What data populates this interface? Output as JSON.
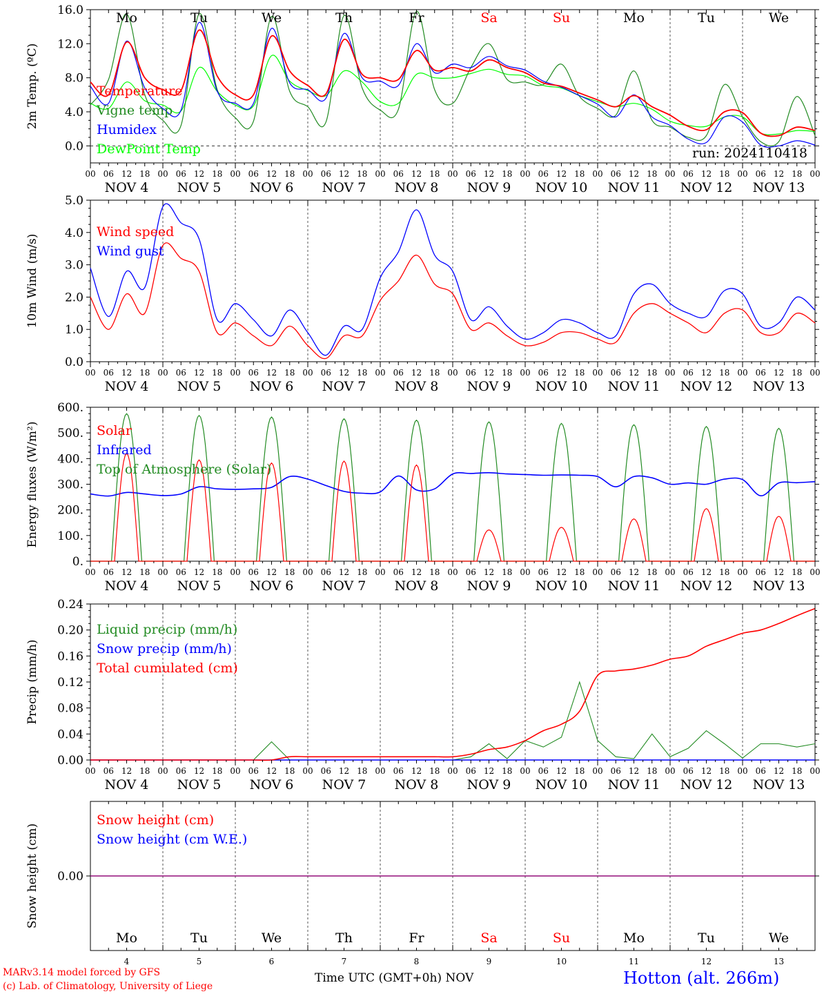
{
  "colors": {
    "red": "#ff0000",
    "dark_green": "#228b22",
    "blue": "#0000ff",
    "light_green": "#00ff00",
    "purple": "#800080",
    "grid": "#555555"
  },
  "x_ticks": [
    "00",
    "06",
    "12",
    "18",
    "00",
    "06",
    "12",
    "18",
    "00",
    "06",
    "12",
    "18",
    "00",
    "06",
    "12",
    "18",
    "00",
    "06",
    "12",
    "18",
    "00",
    "06",
    "12",
    "18",
    "00",
    "06",
    "12",
    "18",
    "00",
    "06",
    "12",
    "18",
    "00",
    "06",
    "12",
    "18",
    "00",
    "06",
    "12",
    "18",
    "00"
  ],
  "date_labels": [
    "NOV  4",
    "NOV  5",
    "NOV  6",
    "NOV  7",
    "NOV  8",
    "NOV  9",
    "NOV 10",
    "NOV 11",
    "NOV 12",
    "NOV 13"
  ],
  "weekdays": [
    "Mo",
    "Tu",
    "We",
    "Th",
    "Fr",
    "Sa",
    "Su",
    "Mo",
    "Tu",
    "We"
  ],
  "weekend_days": [
    "Sa",
    "Su"
  ],
  "day_numbers": [
    "4",
    "5",
    "6",
    "7",
    "8",
    "9",
    "10",
    "11",
    "12",
    "13"
  ],
  "run_label": "run: 2024110418",
  "footer": {
    "credit_line1": "MARv3.14 model forced by GFS",
    "credit_line2": "(c) Lab. of Climatology, University of Liege",
    "xlabel": "Time UTC (GMT+0h) NOV",
    "station": "Hotton (alt. 266m)"
  },
  "chart_data": [
    {
      "type": "line",
      "ylabel": "2m Temp. (ºC)",
      "ylim": [
        -2,
        16
      ],
      "yticks": [
        "16.0",
        "12.0",
        "8.0",
        "4.0",
        "0.0"
      ],
      "ytick_values": [
        16,
        12,
        8,
        4,
        0
      ],
      "dashed_zero": true,
      "x_hours": [
        0,
        6,
        12,
        18,
        24,
        30,
        36,
        42,
        48,
        54,
        60,
        66,
        72,
        78,
        84,
        90,
        96,
        102,
        108,
        114,
        120,
        126,
        132,
        138,
        144,
        150,
        156,
        162,
        168,
        174,
        180,
        186,
        192,
        198,
        204,
        210,
        216,
        222,
        228,
        234,
        240
      ],
      "series": [
        {
          "name": "Temperature",
          "color": "#ff0000",
          "values": [
            7.5,
            6.0,
            12.2,
            8.0,
            6.6,
            6.5,
            13.6,
            8.2,
            6.0,
            6.0,
            12.9,
            8.8,
            7.1,
            6.1,
            12.5,
            8.4,
            8.0,
            7.8,
            11.2,
            8.9,
            9.2,
            8.8,
            10.1,
            9.2,
            8.6,
            7.4,
            7.0,
            6.2,
            5.4,
            4.6,
            5.9,
            4.6,
            3.6,
            2.3,
            1.9,
            4.0,
            3.9,
            1.5,
            1.2,
            2.2,
            1.8
          ]
        },
        {
          "name": "Vigne temp",
          "color": "#228b22",
          "values": [
            4.8,
            7.8,
            15.5,
            6.0,
            3.0,
            2.4,
            15.5,
            6.6,
            3.3,
            2.9,
            15.2,
            6.4,
            4.6,
            2.8,
            15.3,
            6.8,
            4.2,
            4.3,
            15.8,
            6.6,
            5.0,
            9.2,
            12.0,
            7.8,
            7.5,
            7.2,
            9.6,
            5.8,
            4.4,
            3.6,
            8.8,
            3.0,
            2.2,
            1.0,
            1.2,
            7.2,
            3.4,
            0.5,
            0.5,
            5.8,
            1.2
          ]
        },
        {
          "name": "Humidex",
          "color": "#0000ff",
          "values": [
            7.0,
            5.0,
            12.3,
            6.8,
            4.4,
            4.2,
            14.5,
            6.4,
            5.0,
            5.0,
            13.8,
            7.4,
            6.6,
            5.6,
            13.2,
            8.0,
            7.6,
            7.1,
            12.0,
            8.6,
            9.6,
            9.2,
            10.5,
            9.4,
            8.9,
            7.6,
            6.9,
            5.9,
            4.9,
            3.4,
            6.0,
            3.4,
            2.4,
            0.8,
            0.4,
            3.4,
            2.8,
            0.1,
            0.0,
            0.6,
            0.1
          ]
        },
        {
          "name": "DewPoint Temp",
          "color": "#00ff00",
          "values": [
            5.0,
            4.4,
            7.5,
            5.3,
            4.8,
            4.1,
            9.2,
            6.4,
            4.8,
            4.7,
            10.6,
            7.6,
            6.5,
            5.9,
            8.8,
            7.5,
            5.2,
            5.0,
            8.4,
            8.0,
            8.0,
            8.5,
            9.0,
            8.4,
            8.2,
            7.1,
            6.8,
            5.9,
            5.2,
            4.6,
            5.0,
            4.3,
            2.9,
            2.4,
            2.3,
            3.4,
            3.4,
            1.5,
            1.4,
            1.8,
            1.7
          ]
        }
      ]
    },
    {
      "type": "line",
      "ylabel": "10m Wind (m/s)",
      "ylim": [
        0,
        5
      ],
      "yticks": [
        "5.0",
        "4.0",
        "3.0",
        "2.0",
        "1.0",
        "0.0"
      ],
      "ytick_values": [
        5,
        4,
        3,
        2,
        1,
        0
      ],
      "x_hours": [
        0,
        6,
        12,
        18,
        24,
        30,
        36,
        42,
        48,
        54,
        60,
        66,
        72,
        78,
        84,
        90,
        96,
        102,
        108,
        114,
        120,
        126,
        132,
        138,
        144,
        150,
        156,
        162,
        168,
        174,
        180,
        186,
        192,
        198,
        204,
        210,
        216,
        222,
        228,
        234,
        240
      ],
      "series": [
        {
          "name": "Wind speed",
          "color": "#ff0000",
          "values": [
            2.0,
            1.0,
            2.1,
            1.5,
            3.6,
            3.2,
            2.8,
            0.9,
            1.2,
            0.8,
            0.5,
            1.1,
            0.5,
            0.1,
            0.8,
            0.8,
            1.9,
            2.5,
            3.3,
            2.4,
            2.1,
            1.0,
            1.2,
            0.8,
            0.5,
            0.6,
            0.9,
            0.9,
            0.7,
            0.6,
            1.5,
            1.8,
            1.5,
            1.2,
            0.9,
            1.5,
            1.6,
            0.9,
            0.9,
            1.5,
            1.2
          ]
        },
        {
          "name": "Wind gust",
          "color": "#0000ff",
          "values": [
            2.9,
            1.4,
            2.8,
            2.3,
            4.8,
            4.3,
            3.8,
            1.3,
            1.8,
            1.3,
            0.8,
            1.6,
            0.9,
            0.2,
            1.1,
            1.0,
            2.6,
            3.4,
            4.7,
            3.3,
            2.8,
            1.3,
            1.7,
            1.1,
            0.7,
            0.9,
            1.3,
            1.2,
            0.9,
            0.8,
            2.1,
            2.4,
            1.8,
            1.5,
            1.4,
            2.2,
            2.1,
            1.1,
            1.2,
            2.0,
            1.6
          ]
        }
      ]
    },
    {
      "type": "line",
      "ylabel": "Energy fluxes (W/m²)",
      "ylim": [
        0,
        600
      ],
      "yticks": [
        "600.",
        "500.",
        "400.",
        "300.",
        "200.",
        "100.",
        "0."
      ],
      "ytick_values": [
        600,
        500,
        400,
        300,
        200,
        100,
        0
      ],
      "diurnal": {
        "rise_hour": 7,
        "set_hour": 17,
        "solar_rise_hour": 8,
        "solar_set_hour": 16,
        "toa_peak": [
          575,
          568,
          562,
          555,
          550,
          543,
          537,
          532,
          525,
          518
        ],
        "solar_peak": [
          420,
          395,
          383,
          390,
          375,
          122,
          132,
          165,
          205,
          175
        ]
      },
      "infrared": {
        "name": "Infrared",
        "color": "#0000ff",
        "x_hours": [
          0,
          6,
          12,
          18,
          24,
          30,
          36,
          42,
          48,
          54,
          60,
          66,
          72,
          78,
          84,
          90,
          96,
          102,
          108,
          114,
          120,
          126,
          132,
          138,
          144,
          150,
          156,
          162,
          168,
          174,
          180,
          186,
          192,
          198,
          204,
          210,
          216,
          222,
          228,
          234,
          240
        ],
        "values": [
          262,
          254,
          268,
          262,
          256,
          262,
          290,
          282,
          280,
          282,
          288,
          330,
          320,
          295,
          272,
          265,
          270,
          332,
          278,
          282,
          340,
          342,
          345,
          340,
          338,
          335,
          336,
          335,
          330,
          290,
          330,
          325,
          300,
          305,
          300,
          320,
          318,
          255,
          305,
          306,
          310
        ]
      },
      "legend": [
        {
          "name": "Solar",
          "color": "#ff0000"
        },
        {
          "name": "Infrared",
          "color": "#0000ff"
        },
        {
          "name": "Top of Atmosphere (Solar)",
          "color": "#228b22"
        }
      ]
    },
    {
      "type": "line",
      "ylabel": "Precip (mm/h)",
      "ylim": [
        0,
        0.24
      ],
      "yticks": [
        "0.24",
        "0.20",
        "0.16",
        "0.12",
        "0.08",
        "0.04",
        "0.00"
      ],
      "ytick_values": [
        0.24,
        0.2,
        0.16,
        0.12,
        0.08,
        0.04,
        0.0
      ],
      "x_hours": [
        0,
        6,
        12,
        18,
        24,
        30,
        36,
        42,
        48,
        54,
        60,
        66,
        72,
        78,
        84,
        90,
        96,
        102,
        108,
        114,
        120,
        126,
        132,
        138,
        144,
        150,
        156,
        162,
        168,
        174,
        180,
        186,
        192,
        198,
        204,
        210,
        216,
        222,
        228,
        234,
        240
      ],
      "series": [
        {
          "name": "Liquid precip (mm/h)",
          "color": "#228b22",
          "values": [
            0,
            0,
            0,
            0,
            0,
            0,
            0,
            0,
            0,
            0,
            0.028,
            0,
            0,
            0,
            0,
            0,
            0,
            0,
            0,
            0,
            0,
            0.005,
            0.025,
            0.002,
            0.03,
            0.02,
            0.035,
            0.12,
            0.03,
            0.005,
            0.002,
            0.04,
            0.005,
            0.018,
            0.045,
            0.025,
            0.003,
            0.025,
            0.025,
            0.02,
            0.025
          ]
        },
        {
          "name": "Snow precip (mm/h)",
          "color": "#0000ff",
          "values": [
            0,
            0,
            0,
            0,
            0,
            0,
            0,
            0,
            0,
            0,
            0,
            0,
            0,
            0,
            0,
            0,
            0,
            0,
            0,
            0,
            0,
            0,
            0,
            0,
            0,
            0,
            0,
            0,
            0,
            0,
            0,
            0,
            0,
            0,
            0,
            0,
            0,
            0,
            0,
            0,
            0
          ]
        },
        {
          "name": "Total cumulated (cm)",
          "color": "#ff0000",
          "values": [
            0,
            0,
            0,
            0,
            0,
            0,
            0,
            0,
            0,
            0,
            0,
            0.005,
            0.005,
            0.005,
            0.005,
            0.005,
            0.005,
            0.005,
            0.005,
            0.005,
            0.005,
            0.009,
            0.016,
            0.02,
            0.03,
            0.045,
            0.055,
            0.075,
            0.13,
            0.137,
            0.14,
            0.146,
            0.155,
            0.16,
            0.175,
            0.185,
            0.195,
            0.2,
            0.21,
            0.222,
            0.233
          ]
        }
      ]
    },
    {
      "type": "line",
      "ylabel": "Snow height (cm)",
      "yticks": [
        "0.00"
      ],
      "series": [
        {
          "name": "Snow height (cm)",
          "color": "#ff0000",
          "values": [
            0,
            0
          ]
        },
        {
          "name": "Snow height (cm W.E.)",
          "color": "#0000ff",
          "values": [
            0,
            0
          ]
        }
      ]
    }
  ]
}
